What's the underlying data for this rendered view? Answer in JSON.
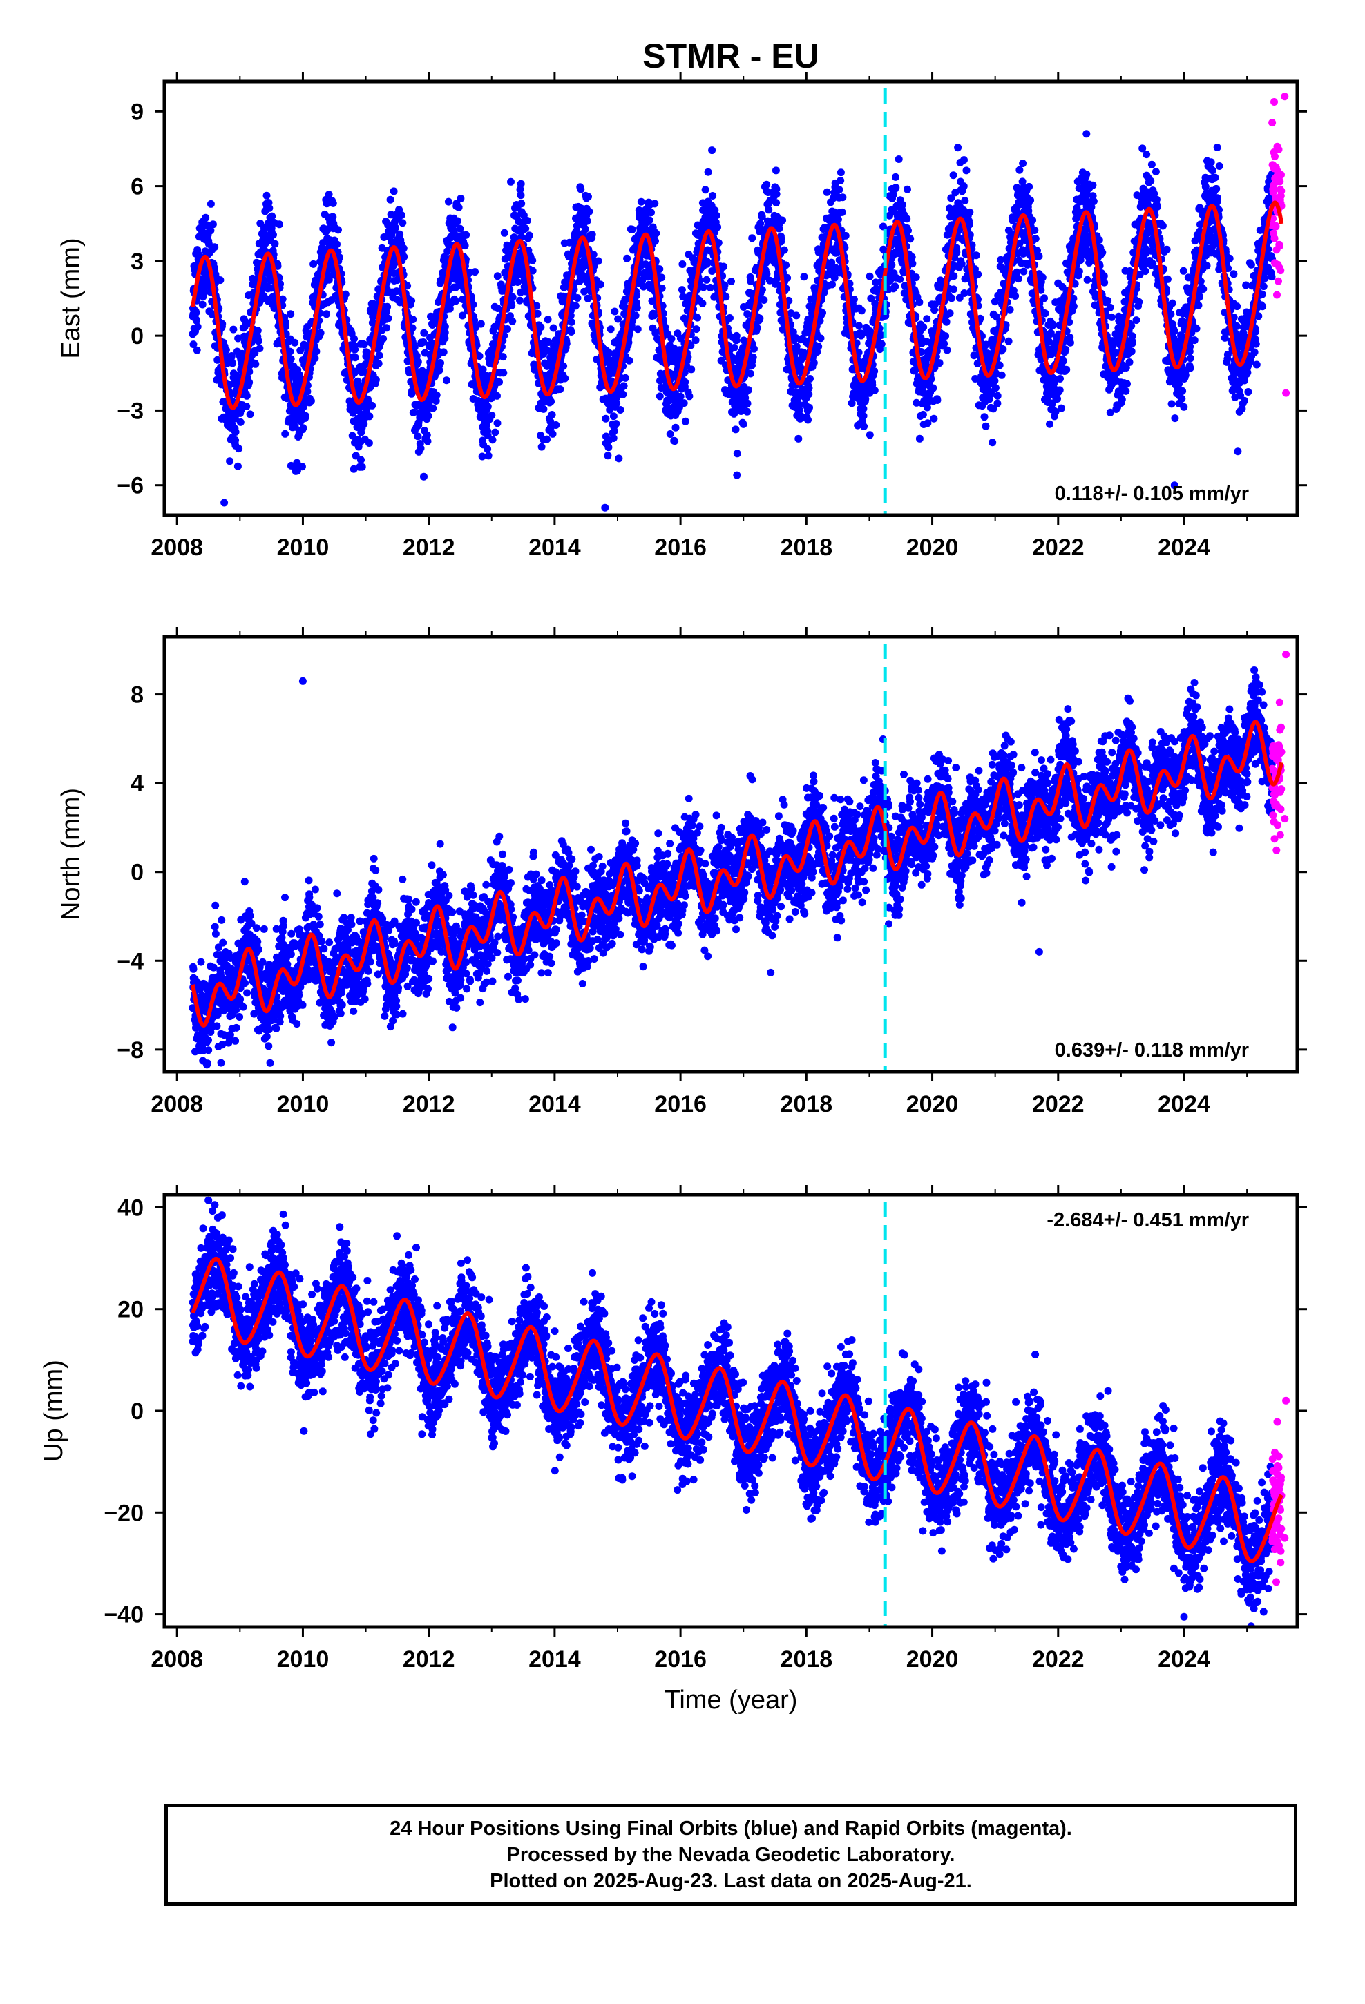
{
  "title": "STMR - EU",
  "footer": {
    "line1": "24 Hour Positions Using Final Orbits (blue) and Rapid Orbits (magenta).",
    "line2": "Processed by the Nevada Geodetic Laboratory.",
    "line3": "Plotted on 2025-Aug-23. Last data on 2025-Aug-21."
  },
  "colors": {
    "final_orbits": "#0000ff",
    "rapid_orbits": "#ff00ff",
    "model_fit": "#ff0000",
    "equipment_change": "#00e5ee"
  },
  "chart_data": [
    {
      "type": "scatter",
      "name": "east",
      "xlabel": "",
      "ylabel": "East (mm)",
      "xlim": [
        2007.8,
        2025.8
      ],
      "ylim": [
        -7.2,
        10.2
      ],
      "xticks": [
        2008,
        2010,
        2012,
        2014,
        2016,
        2018,
        2020,
        2022,
        2024
      ],
      "yticks": [
        -6,
        -3,
        0,
        3,
        6,
        9
      ],
      "ytick_labels": [
        "−6",
        "−3",
        "0",
        "3",
        "6",
        "9"
      ],
      "rate_label": "0.118+/- 0.105 mm/yr",
      "rate_position": "bottom-right",
      "equipment_change_year": 2019.25,
      "data_start": 2008.25,
      "data_end": 2025.55,
      "rapid_start": 2025.4,
      "model": {
        "intercept": 0.0,
        "trend_mm_per_yr": 0.118,
        "annual_amplitude": 3.0,
        "annual_phase_peak": 0.42,
        "semiannual_amplitude": 0.3,
        "amplitude_growth_per_yr": 0.01
      },
      "scatter_sd": 1.05,
      "outliers": [
        [
          2022.45,
          8.1
        ],
        [
          2014.8,
          -6.9
        ],
        [
          2008.75,
          -6.7
        ],
        [
          2023.85,
          -6.0
        ],
        [
          2025.6,
          9.6
        ],
        [
          2025.62,
          -2.3
        ]
      ]
    },
    {
      "type": "scatter",
      "name": "north",
      "xlabel": "",
      "ylabel": "North (mm)",
      "xlim": [
        2007.8,
        2025.8
      ],
      "ylim": [
        -9.0,
        10.6
      ],
      "xticks": [
        2008,
        2010,
        2012,
        2014,
        2016,
        2018,
        2020,
        2022,
        2024
      ],
      "yticks": [
        -8,
        -4,
        0,
        4,
        8
      ],
      "ytick_labels": [
        "−8",
        "−4",
        "0",
        "4",
        "8"
      ],
      "rate_label": "0.639+/- 0.118 mm/yr",
      "rate_position": "bottom-right",
      "equipment_change_year": 2019.25,
      "data_start": 2008.25,
      "data_end": 2025.55,
      "rapid_start": 2025.4,
      "model": {
        "intercept": -5.6,
        "trend_mm_per_yr": 0.639,
        "annual_amplitude": 0.8,
        "annual_phase_peak": 0.05,
        "semiannual_amplitude": 0.9,
        "amplitude_growth_per_yr": 0.0
      },
      "scatter_sd": 1.0,
      "outliers": [
        [
          2010.0,
          8.6
        ],
        [
          2008.7,
          -8.6
        ],
        [
          2021.7,
          -3.6
        ],
        [
          2025.6,
          2.4
        ],
        [
          2025.62,
          9.8
        ]
      ]
    },
    {
      "type": "scatter",
      "name": "up",
      "xlabel": "Time (year)",
      "ylabel": "Up (mm)",
      "xlim": [
        2007.8,
        2025.8
      ],
      "ylim": [
        -42.5,
        42.5
      ],
      "xticks": [
        2008,
        2010,
        2012,
        2014,
        2016,
        2018,
        2020,
        2022,
        2024
      ],
      "yticks": [
        -40,
        -20,
        0,
        20,
        40
      ],
      "ytick_labels": [
        "−40",
        "−20",
        "0",
        "20",
        "40"
      ],
      "rate_label": "-2.684+/- 0.451 mm/yr",
      "rate_position": "top-right",
      "equipment_change_year": 2019.25,
      "data_start": 2008.25,
      "data_end": 2025.55,
      "rapid_start": 2025.4,
      "model": {
        "intercept": 23.0,
        "trend_mm_per_yr": -2.684,
        "annual_amplitude": 7.5,
        "annual_phase_peak": 0.6,
        "semiannual_amplitude": 0.8,
        "amplitude_growth_per_yr": 0.0
      },
      "scatter_sd": 4.5,
      "outliers": [
        [
          2008.6,
          40.5
        ],
        [
          2024.0,
          -40.5
        ],
        [
          2025.6,
          -25.0
        ],
        [
          2025.62,
          2.0
        ]
      ]
    }
  ]
}
